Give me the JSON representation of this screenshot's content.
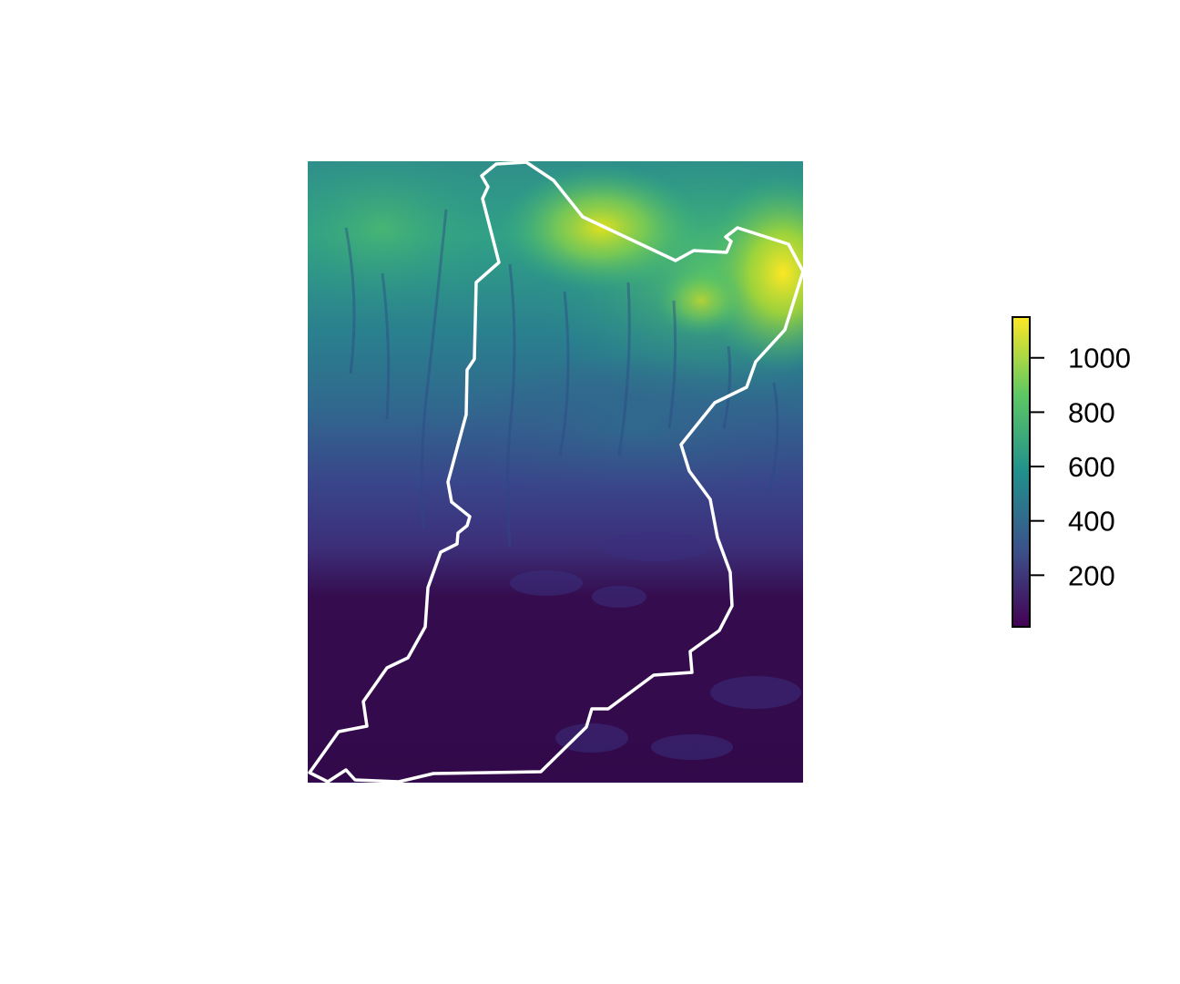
{
  "map": {
    "layer": "elevation raster",
    "palette": [
      "#440154",
      "#3b528b",
      "#21908c",
      "#5dc863",
      "#fde725"
    ],
    "boundary_color": "#ffffff"
  },
  "legend": {
    "min": 10,
    "max": 1150,
    "ticks": [
      {
        "value": 200,
        "label": "200"
      },
      {
        "value": 400,
        "label": "400"
      },
      {
        "value": 600,
        "label": "600"
      },
      {
        "value": 800,
        "label": "800"
      },
      {
        "value": 1000,
        "label": "1000"
      }
    ]
  }
}
